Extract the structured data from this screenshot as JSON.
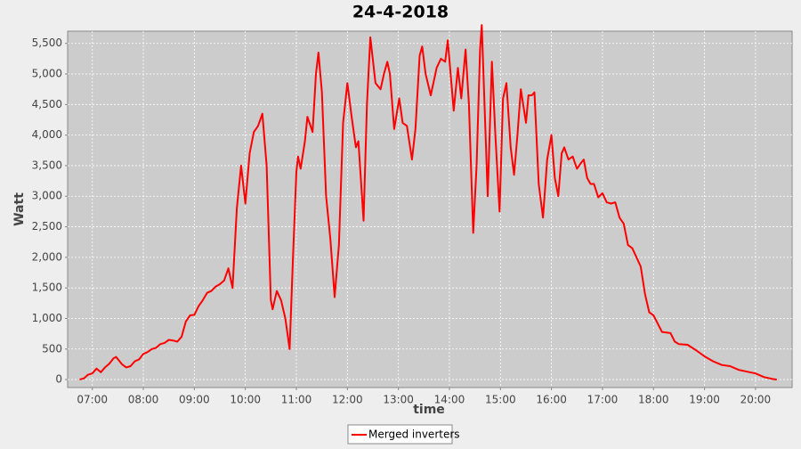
{
  "chart_data": {
    "type": "line",
    "title": "24-4-2018",
    "x_label": "time",
    "y_label": "Watt",
    "x": [
      "06:45",
      "06:50",
      "06:55",
      "07:00",
      "07:05",
      "07:10",
      "07:15",
      "07:20",
      "07:25",
      "07:28",
      "07:35",
      "07:40",
      "07:45",
      "07:50",
      "07:55",
      "08:00",
      "08:05",
      "08:10",
      "08:15",
      "08:20",
      "08:25",
      "08:30",
      "08:35",
      "08:40",
      "08:45",
      "08:50",
      "08:55",
      "09:00",
      "09:05",
      "09:10",
      "09:15",
      "09:20",
      "09:25",
      "09:30",
      "09:35",
      "09:40",
      "09:45",
      "09:50",
      "09:55",
      "10:00",
      "10:05",
      "10:10",
      "10:15",
      "10:20",
      "10:25",
      "10:30",
      "10:32",
      "10:37",
      "10:42",
      "10:47",
      "10:52",
      "10:56",
      "11:00",
      "11:02",
      "11:05",
      "11:10",
      "11:13",
      "11:19",
      "11:23",
      "11:26",
      "11:30",
      "11:35",
      "11:40",
      "11:45",
      "11:50",
      "11:55",
      "12:00",
      "12:05",
      "12:10",
      "12:13",
      "12:19",
      "12:23",
      "12:27",
      "12:33",
      "12:39",
      "12:43",
      "12:47",
      "12:50",
      "12:55",
      "13:01",
      "13:05",
      "13:10",
      "13:16",
      "13:20",
      "13:25",
      "13:28",
      "13:32",
      "13:38",
      "13:45",
      "13:50",
      "13:55",
      "13:58",
      "14:05",
      "14:10",
      "14:14",
      "14:19",
      "14:23",
      "14:28",
      "14:32",
      "14:36",
      "14:38",
      "14:45",
      "14:50",
      "14:54",
      "14:59",
      "15:03",
      "15:07",
      "15:12",
      "15:16",
      "15:20",
      "15:24",
      "15:30",
      "15:33",
      "15:37",
      "15:40",
      "15:45",
      "15:50",
      "15:55",
      "16:00",
      "16:04",
      "16:08",
      "16:12",
      "16:15",
      "16:20",
      "16:25",
      "16:30",
      "16:35",
      "16:38",
      "16:42",
      "16:46",
      "16:50",
      "16:55",
      "17:00",
      "17:05",
      "17:10",
      "17:15",
      "17:20",
      "17:25",
      "17:30",
      "17:35",
      "17:40",
      "17:45",
      "17:50",
      "17:55",
      "18:00",
      "18:10",
      "18:20",
      "18:25",
      "18:30",
      "18:40",
      "18:50",
      "19:00",
      "19:10",
      "19:20",
      "19:30",
      "19:40",
      "19:50",
      "20:00",
      "20:10",
      "20:20",
      "20:25"
    ],
    "series": [
      {
        "name": "Merged inverters",
        "color": "#ff0000",
        "values": [
          0,
          20,
          80,
          100,
          180,
          120,
          200,
          260,
          350,
          370,
          250,
          200,
          220,
          300,
          330,
          420,
          450,
          500,
          520,
          580,
          600,
          650,
          640,
          620,
          700,
          950,
          1050,
          1060,
          1200,
          1300,
          1420,
          1450,
          1520,
          1560,
          1620,
          1820,
          1500,
          2800,
          3500,
          2880,
          3700,
          4050,
          4150,
          4350,
          3500,
          1300,
          1150,
          1450,
          1300,
          1000,
          500,
          2000,
          3400,
          3650,
          3450,
          3900,
          4300,
          4050,
          5000,
          5350,
          4700,
          3000,
          2300,
          1350,
          2200,
          4200,
          4850,
          4300,
          3800,
          3900,
          2600,
          4500,
          5600,
          4850,
          4750,
          5000,
          5200,
          5000,
          4100,
          4600,
          4200,
          4150,
          3600,
          4100,
          5300,
          5450,
          5000,
          4650,
          5100,
          5250,
          5200,
          5550,
          4400,
          5100,
          4600,
          5400,
          4500,
          2400,
          3500,
          5400,
          5800,
          3000,
          5200,
          4000,
          2750,
          4600,
          4850,
          3800,
          3350,
          4000,
          4750,
          4200,
          4650,
          4650,
          4700,
          3200,
          2650,
          3600,
          4000,
          3300,
          3000,
          3700,
          3800,
          3600,
          3650,
          3450,
          3550,
          3600,
          3300,
          3200,
          3200,
          2980,
          3050,
          2900,
          2880,
          2900,
          2650,
          2550,
          2200,
          2150,
          2000,
          1850,
          1400,
          1100,
          1050,
          780,
          760,
          620,
          580,
          570,
          480,
          380,
          300,
          240,
          220,
          160,
          130,
          100,
          40,
          10,
          0
        ]
      }
    ],
    "xlim": [
      "06:31",
      "20:43"
    ],
    "xticks": [
      "07:00",
      "08:00",
      "09:00",
      "10:00",
      "11:00",
      "12:00",
      "13:00",
      "14:00",
      "15:00",
      "16:00",
      "17:00",
      "18:00",
      "19:00",
      "20:00"
    ],
    "ylim": [
      -130,
      5700
    ],
    "yticks": [
      0,
      500,
      {
        "value": 1000,
        "label": "1,000"
      },
      {
        "value": 1500,
        "label": "1,500"
      },
      {
        "value": 2000,
        "label": "2,000"
      },
      {
        "value": 2500,
        "label": "2,500"
      },
      {
        "value": 3000,
        "label": "3,000"
      },
      {
        "value": 3500,
        "label": "3,500"
      },
      {
        "value": 4000,
        "label": "4,000"
      },
      {
        "value": 4500,
        "label": "4,500"
      },
      {
        "value": 5000,
        "label": "5,000"
      },
      {
        "value": 5500,
        "label": "5,500"
      }
    ],
    "grid": true,
    "legend": "bottom"
  }
}
